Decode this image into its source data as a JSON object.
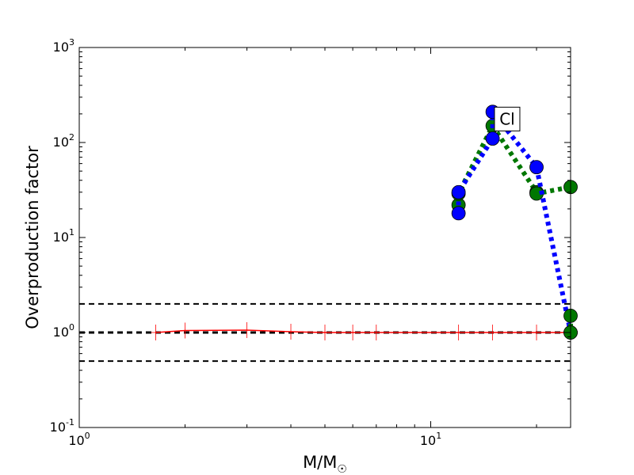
{
  "chart_data": {
    "type": "line",
    "title": "",
    "xlabel": "M/M",
    "xlabel_sub": "☉",
    "ylabel": "Overproduction factor",
    "xscale": "log",
    "yscale": "log",
    "xlim": [
      1,
      25
    ],
    "ylim": [
      0.1,
      1000
    ],
    "x_ticks": [
      {
        "value": 1,
        "base": "10",
        "exp": "0"
      },
      {
        "value": 10,
        "base": "10",
        "exp": "1"
      }
    ],
    "y_ticks": [
      {
        "value": 0.1,
        "base": "10",
        "exp": "-1"
      },
      {
        "value": 1,
        "base": "10",
        "exp": "0"
      },
      {
        "value": 10,
        "base": "10",
        "exp": "1"
      },
      {
        "value": 100,
        "base": "10",
        "exp": "2"
      },
      {
        "value": 1000,
        "base": "10",
        "exp": "3"
      }
    ],
    "reference_lines": [
      2,
      1,
      0.5
    ],
    "annotation": {
      "text": "Cl",
      "x": 16.5,
      "y": 180
    },
    "series": [
      {
        "color": "#ff0000",
        "style": "solid",
        "marker": "plus",
        "points": [
          {
            "x": 1.65,
            "y": 1.0
          },
          {
            "x": 2.0,
            "y": 1.05
          },
          {
            "x": 3.0,
            "y": 1.06
          },
          {
            "x": 4.0,
            "y": 1.02
          },
          {
            "x": 5.0,
            "y": 1.0
          },
          {
            "x": 6.0,
            "y": 1.0
          },
          {
            "x": 7.0,
            "y": 1.0
          },
          {
            "x": 12.0,
            "y": 1.0
          },
          {
            "x": 15.0,
            "y": 1.0
          },
          {
            "x": 20.0,
            "y": 1.0
          },
          {
            "x": 25.0,
            "y": 1.0
          }
        ]
      },
      {
        "color": "#007700",
        "style": "dotted",
        "marker": "circle",
        "points": [
          {
            "x": 12.0,
            "y": 22
          },
          {
            "x": 12.0,
            "y": 29
          },
          {
            "x": 15.0,
            "y": 150
          },
          {
            "x": 20.0,
            "y": 30
          },
          {
            "x": 20.0,
            "y": 29
          },
          {
            "x": 25.0,
            "y": 34
          }
        ]
      },
      {
        "color": "#0000ff",
        "style": "dotted",
        "marker": "circle",
        "points": [
          {
            "x": 12.0,
            "y": 18
          },
          {
            "x": 12.0,
            "y": 30
          },
          {
            "x": 15.0,
            "y": 110
          },
          {
            "x": 15.0,
            "y": 210
          },
          {
            "x": 20.0,
            "y": 55
          },
          {
            "x": 25.0,
            "y": 1.0
          }
        ]
      },
      {
        "color": "#007700",
        "style": "dotted",
        "marker": "circle",
        "points": [
          {
            "x": 25.0,
            "y": 1.5
          },
          {
            "x": 25.0,
            "y": 1.0
          }
        ]
      }
    ]
  }
}
